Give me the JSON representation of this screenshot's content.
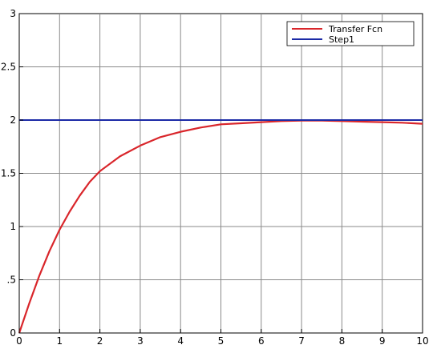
{
  "chart_data": {
    "type": "line",
    "title": "",
    "xlabel": "",
    "ylabel": "",
    "xlim": [
      0,
      10
    ],
    "ylim": [
      0,
      3
    ],
    "grid": true,
    "legend_position": "top-right",
    "x_ticks": [
      0,
      1,
      2,
      3,
      4,
      5,
      6,
      7,
      8,
      9,
      10
    ],
    "x_tick_labels": [
      "0",
      "1",
      "2",
      "3",
      "4",
      "5",
      "6",
      "7",
      "8",
      "9",
      "10"
    ],
    "y_ticks": [
      0,
      0.5,
      1,
      1.5,
      2,
      2.5,
      3
    ],
    "y_tick_labels": [
      "0",
      ".5",
      "1",
      "1.5",
      "2",
      "2.5",
      "3"
    ],
    "series": [
      {
        "name": "Transfer Fcn",
        "color": "#d9262b",
        "x": [
          0,
          0.25,
          0.5,
          0.75,
          1,
          1.25,
          1.5,
          1.75,
          2,
          2.5,
          3,
          3.5,
          4,
          4.5,
          5,
          5.5,
          6,
          6.5,
          7,
          7.5,
          8,
          8.5,
          9,
          9.5,
          10
        ],
        "y": [
          0,
          0.28,
          0.54,
          0.77,
          0.97,
          1.14,
          1.29,
          1.42,
          1.52,
          1.66,
          1.76,
          1.84,
          1.89,
          1.93,
          1.96,
          1.97,
          1.98,
          1.99,
          1.995,
          1.995,
          1.99,
          1.985,
          1.98,
          1.975,
          1.965
        ]
      },
      {
        "name": "Step1",
        "color": "#1b2aa6",
        "x": [
          0,
          10
        ],
        "y": [
          2,
          2
        ]
      }
    ]
  }
}
